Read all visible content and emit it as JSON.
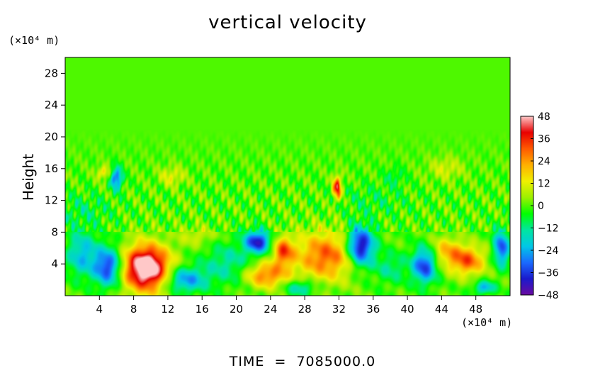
{
  "chart_data": {
    "type": "heatmap",
    "title": "vertical velocity",
    "xlabel": "",
    "x_unit_label": "(×10⁴ m)",
    "ylabel": "Height",
    "y_unit_label": "(×10⁴ m)",
    "footer": "TIME  =  7085000.0",
    "xlim": [
      0,
      52
    ],
    "ylim": [
      0,
      30
    ],
    "x_ticks": [
      4,
      8,
      12,
      16,
      20,
      24,
      28,
      32,
      36,
      40,
      44,
      48
    ],
    "y_ticks": [
      4,
      8,
      12,
      16,
      20,
      24,
      28
    ],
    "colorbar": {
      "range": [
        -48,
        48
      ],
      "ticks": [
        48,
        36,
        24,
        12,
        0,
        -12,
        -24,
        -36,
        -48
      ],
      "tick_labels": [
        "48",
        "36",
        "24",
        "12",
        "0",
        "−12",
        "−24",
        "−36",
        "−48"
      ],
      "colors": [
        "#6a0aa0",
        "#1a1acc",
        "#1a6aff",
        "#00c8e6",
        "#00e6a0",
        "#00ff00",
        "#9cf000",
        "#f0f000",
        "#ffb000",
        "#ff5a00",
        "#e80000",
        "#ffc8c8"
      ]
    },
    "features": [
      {
        "x": 9.5,
        "y": 3.6,
        "value": 48,
        "sx": 2.4,
        "sy": 2.6
      },
      {
        "x": 9.5,
        "y": 3.0,
        "value": 14,
        "sx": 3.6,
        "sy": 3.4
      },
      {
        "x": 30.5,
        "y": 5.0,
        "value": 30,
        "sx": 3.6,
        "sy": 3.0
      },
      {
        "x": 25.5,
        "y": 5.6,
        "value": 30,
        "sx": 1.2,
        "sy": 1.8
      },
      {
        "x": 23.5,
        "y": 2.6,
        "value": 28,
        "sx": 2.5,
        "sy": 1.6
      },
      {
        "x": 31.8,
        "y": 13.6,
        "value": 40,
        "sx": 0.5,
        "sy": 1.4
      },
      {
        "x": 47.0,
        "y": 4.4,
        "value": 30,
        "sx": 2.0,
        "sy": 1.8
      },
      {
        "x": 44.5,
        "y": 5.6,
        "value": 18,
        "sx": 1.8,
        "sy": 1.8
      },
      {
        "x": 34.5,
        "y": 6.2,
        "value": -48,
        "sx": 1.6,
        "sy": 2.4
      },
      {
        "x": 22.5,
        "y": 6.8,
        "value": -40,
        "sx": 1.5,
        "sy": 1.4
      },
      {
        "x": 5.0,
        "y": 3.6,
        "value": -38,
        "sx": 1.6,
        "sy": 2.4
      },
      {
        "x": 2.0,
        "y": 5.2,
        "value": -22,
        "sx": 1.8,
        "sy": 2.8
      },
      {
        "x": 14.0,
        "y": 2.0,
        "value": -28,
        "sx": 2.4,
        "sy": 1.6
      },
      {
        "x": 42.0,
        "y": 3.8,
        "value": -36,
        "sx": 1.4,
        "sy": 2.2
      },
      {
        "x": 51.0,
        "y": 6.0,
        "value": -34,
        "sx": 0.9,
        "sy": 2.2
      },
      {
        "x": 6.0,
        "y": 14.8,
        "value": -32,
        "sx": 0.7,
        "sy": 1.4
      },
      {
        "x": 27.5,
        "y": 1.0,
        "value": -18,
        "sx": 1.8,
        "sy": 1.0
      },
      {
        "x": 19.0,
        "y": 4.0,
        "value": -14,
        "sx": 3.0,
        "sy": 2.6
      },
      {
        "x": 38.0,
        "y": 3.5,
        "value": -12,
        "sx": 2.0,
        "sy": 2.0
      },
      {
        "x": 2.0,
        "y": 10.8,
        "value": -8,
        "sx": 3.5,
        "sy": 2.0
      },
      {
        "x": 36.0,
        "y": 12.0,
        "value": -6,
        "sx": 4.0,
        "sy": 2.0
      },
      {
        "x": 15.5,
        "y": 7.5,
        "value": 10,
        "sx": 2.0,
        "sy": 1.2
      },
      {
        "x": 44.5,
        "y": 16.0,
        "value": 10,
        "sx": 2.0,
        "sy": 1.4
      },
      {
        "x": 4.5,
        "y": 15.5,
        "value": 16,
        "sx": 0.8,
        "sy": 0.8
      },
      {
        "x": 12.5,
        "y": 15.0,
        "value": 12,
        "sx": 1.5,
        "sy": 1.2
      },
      {
        "x": 49.0,
        "y": 1.0,
        "value": -24,
        "sx": 1.2,
        "sy": 0.8
      },
      {
        "x": 38.5,
        "y": 15.0,
        "value": -8,
        "sx": 1.2,
        "sy": 1.2
      }
    ]
  }
}
